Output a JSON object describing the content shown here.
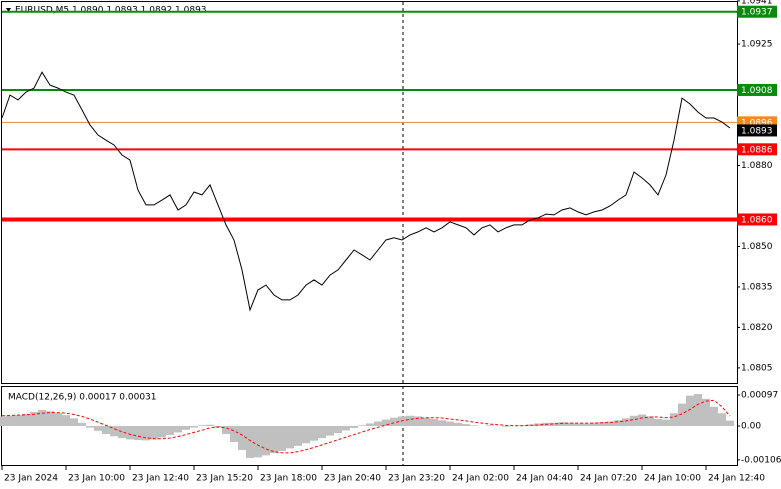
{
  "chart_data": [
    {
      "type": "line",
      "title": "EURUSD,M5  1.0890 1.0893 1.0892 1.0893",
      "categories": [
        "23 Jan 2024",
        null,
        null,
        null,
        null,
        null,
        null,
        null,
        "23 Jan 10:00",
        null,
        null,
        null,
        null,
        null,
        null,
        null,
        "23 Jan 12:40",
        null,
        null,
        null,
        null,
        null,
        null,
        null,
        "23 Jan 15:20",
        null,
        null,
        null,
        null,
        null,
        null,
        null,
        "23 Jan 18:00",
        null,
        null,
        null,
        null,
        null,
        null,
        null,
        "23 Jan 20:40",
        null,
        null,
        null,
        null,
        null,
        null,
        null,
        "23 Jan 23:20",
        null,
        null,
        null,
        null,
        null,
        null,
        null,
        "24 Jan 02:00",
        null,
        null,
        null,
        null,
        null,
        null,
        null,
        "24 Jan 04:40",
        null,
        null,
        null,
        null,
        null,
        null,
        null,
        "24 Jan 07:20",
        null,
        null,
        null,
        null,
        null,
        null,
        null,
        "24 Jan 10:00",
        null,
        null,
        null,
        null,
        null,
        null,
        null,
        "24 Jan 12:40",
        null,
        null,
        null
      ],
      "values": [
        1.08976,
        1.09061,
        1.09043,
        1.09072,
        1.09087,
        1.09146,
        1.09098,
        1.09087,
        1.09072,
        1.09061,
        1.09006,
        1.0895,
        1.08913,
        1.08894,
        1.08876,
        1.08839,
        1.0882,
        1.08709,
        1.08654,
        1.08654,
        1.08672,
        1.08691,
        1.08635,
        1.08654,
        1.08702,
        1.08691,
        1.08728,
        1.08654,
        1.0858,
        1.08524,
        1.08413,
        1.08265,
        1.08339,
        1.08357,
        1.0832,
        1.08302,
        1.08302,
        1.0832,
        1.08357,
        1.08376,
        1.08357,
        1.08394,
        1.08413,
        1.0845,
        1.08487,
        1.08469,
        1.0845,
        1.08487,
        1.08524,
        1.08532,
        1.08524,
        1.08543,
        1.08554,
        1.08569,
        1.08554,
        1.08569,
        1.08591,
        1.0858,
        1.08569,
        1.08543,
        1.08569,
        1.0858,
        1.08554,
        1.08569,
        1.0858,
        1.0858,
        1.08598,
        1.08606,
        1.0862,
        1.08617,
        1.08635,
        1.08643,
        1.08628,
        1.08617,
        1.08628,
        1.08635,
        1.0865,
        1.08672,
        1.08691,
        1.08776,
        1.08754,
        1.08728,
        1.08691,
        1.08765,
        1.08894,
        1.0905,
        1.09028,
        1.08998,
        1.08976,
        1.08976,
        1.08961,
        1.08939
      ],
      "color": "#000000",
      "ylim": [
        1.07994,
        1.09406
      ],
      "yticks": [
        1.0941,
        1.0925,
        {
          "value": 1.088,
          "label": "1.0880"
        },
        {
          "value": 1.085,
          "label": "1.0850"
        },
        1.0835,
        {
          "value": 1.082,
          "label": "1.0820"
        },
        1.0805
      ],
      "levels": [
        {
          "value": 1.0937,
          "label": "1.0937",
          "color": "#0a8a0a"
        },
        {
          "value": 1.0908,
          "label": "1.0908",
          "color": "#0a8a0a"
        },
        {
          "value": 1.0896,
          "label": "1.0896",
          "color": "#f08a24"
        },
        {
          "value": 1.0886,
          "label": "1.0886",
          "color": "#ff0000"
        },
        {
          "value": 1.086,
          "label": "1.0860",
          "color": "#ff0000"
        }
      ],
      "last_price": 1.0893
    },
    {
      "type": "macd",
      "title": "MACD(12,26,9) 0.00017 0.00031",
      "ylim": [
        -0.00122,
        0.00122
      ],
      "yticks": [
        0.00097,
        {
          "value": 0,
          "label": "0.00"
        },
        -0.00106
      ],
      "series": [
        {
          "style": "histogram",
          "color": "#c0c0c0",
          "values": [
            0.0003,
            0.00032,
            0.00034,
            0.00038,
            0.00044,
            0.0005,
            0.00046,
            0.0004,
            0.00034,
            0.00024,
            0.0001,
            -5e-05,
            -0.00015,
            -0.00025,
            -0.00032,
            -0.00038,
            -0.00042,
            -0.00044,
            -0.00045,
            -0.00042,
            -0.00036,
            -0.00028,
            -0.0002,
            -0.00012,
            -5e-05,
            2e-05,
            4e-05,
            -5e-05,
            -0.00025,
            -0.0005,
            -0.00075,
            -0.001,
            -0.00098,
            -0.00092,
            -0.00085,
            -0.00078,
            -0.0007,
            -0.00062,
            -0.00054,
            -0.00046,
            -0.00038,
            -0.0003,
            -0.00022,
            -0.00014,
            -6e-05,
            2e-05,
            8e-05,
            0.00014,
            0.0002,
            0.00026,
            0.0003,
            0.00032,
            0.0003,
            0.00026,
            0.00022,
            0.00018,
            0.00014,
            0.0001,
            6e-05,
            2e-05,
            0,
            2e-05,
            0,
            -2e-05,
            0,
            2e-05,
            5e-05,
            8e-05,
            0.0001,
            0.0001,
            0.00012,
            0.0001,
            8e-05,
            8e-05,
            0.0001,
            0.00012,
            0.00014,
            0.00018,
            0.00024,
            0.00032,
            0.00036,
            0.0003,
            0.00022,
            0.0002,
            0.0004,
            0.0007,
            0.00095,
            0.001,
            0.00085,
            0.0006,
            0.0004,
            0.00017
          ]
        },
        {
          "style": "dashed",
          "color": "#ff0000",
          "values": [
            0.00032,
            0.00033,
            0.00034,
            0.00035,
            0.00037,
            0.0004,
            0.00042,
            0.00042,
            0.0004,
            0.00036,
            0.0003,
            0.00022,
            0.00012,
            2e-05,
            -8e-05,
            -0.00018,
            -0.00026,
            -0.00032,
            -0.00037,
            -0.0004,
            -0.0004,
            -0.00038,
            -0.00033,
            -0.00027,
            -0.0002,
            -0.00013,
            -6e-05,
            -3e-05,
            -6e-05,
            -0.00015,
            -0.00028,
            -0.00045,
            -0.0006,
            -0.00072,
            -0.0008,
            -0.00084,
            -0.00084,
            -0.0008,
            -0.00074,
            -0.00067,
            -0.00059,
            -0.00051,
            -0.00043,
            -0.00035,
            -0.00027,
            -0.00019,
            -0.00011,
            -4e-05,
            3e-05,
            0.0001,
            0.00016,
            0.00021,
            0.00024,
            0.00026,
            0.00026,
            0.00025,
            0.00022,
            0.00019,
            0.00016,
            0.00012,
            9e-05,
            6e-05,
            4e-05,
            2e-05,
            1e-05,
            1e-05,
            2e-05,
            3e-05,
            5e-05,
            7e-05,
            8e-05,
            9e-05,
            9e-05,
            9e-05,
            9e-05,
            0.0001,
            0.00011,
            0.00013,
            0.00016,
            0.0002,
            0.00025,
            0.00028,
            0.00028,
            0.00026,
            0.00028,
            0.00038,
            0.00052,
            0.00068,
            0.00078,
            0.0008,
            0.0006,
            0.00031
          ]
        }
      ]
    }
  ]
}
